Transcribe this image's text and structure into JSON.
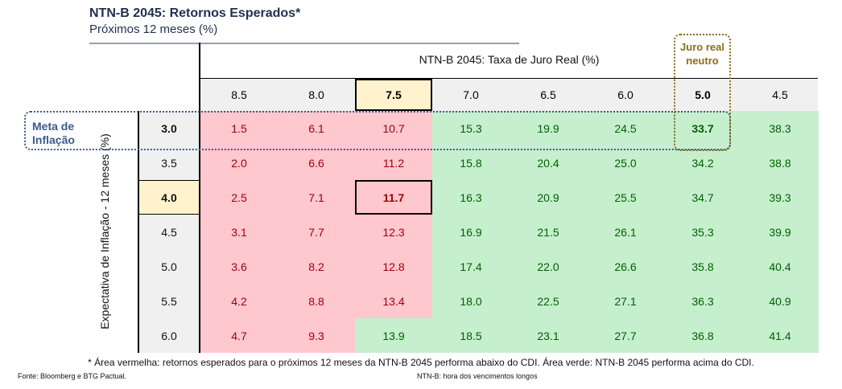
{
  "title": "NTN-B 2045: Retornos Esperados*",
  "subtitle": "Próximos 12 meses (%)",
  "chart_data": {
    "type": "table",
    "xlabel": "NTN-B 2045: Taxa de Juro Real (%)",
    "ylabel": "Expectativa de Inflação - 12 meses (%)",
    "columns": [
      "8.5",
      "8.0",
      "7.5",
      "7.0",
      "6.5",
      "6.0",
      "5.0",
      "4.5"
    ],
    "rows": [
      "3.0",
      "3.5",
      "4.0",
      "4.5",
      "5.0",
      "5.5",
      "6.0"
    ],
    "values": [
      [
        "1.5",
        "6.1",
        "10.7",
        "15.3",
        "19.9",
        "24.5",
        "33.7",
        "38.3"
      ],
      [
        "2.0",
        "6.6",
        "11.2",
        "15.8",
        "20.4",
        "25.0",
        "34.2",
        "38.8"
      ],
      [
        "2.5",
        "7.1",
        "11.7",
        "16.3",
        "20.9",
        "25.5",
        "34.7",
        "39.3"
      ],
      [
        "3.1",
        "7.7",
        "12.3",
        "16.9",
        "21.5",
        "26.1",
        "35.3",
        "39.9"
      ],
      [
        "3.6",
        "8.2",
        "12.8",
        "17.4",
        "22.0",
        "26.6",
        "35.8",
        "40.4"
      ],
      [
        "4.2",
        "8.8",
        "13.4",
        "18.0",
        "22.5",
        "27.1",
        "36.3",
        "40.9"
      ],
      [
        "4.7",
        "9.3",
        "13.9",
        "18.5",
        "23.1",
        "27.7",
        "36.8",
        "41.4"
      ]
    ],
    "below_cdi_threshold_note": "red = below CDI, green = above CDI",
    "colors": {
      "red_fill": "#ffc7ce",
      "red_text": "#9c0006",
      "green_fill": "#c6efce",
      "green_text": "#006100",
      "highlight": "#fff2cc"
    },
    "highlight_column": "7.5",
    "highlight_row": "4.0",
    "bold_columns": [
      "7.5",
      "5.0"
    ],
    "bold_rows": [
      "3.0",
      "4.0"
    ]
  },
  "annotations": {
    "meta": "Meta de Inflação",
    "juro": "Juro real neutro"
  },
  "footnote": "* Área vermelha: retornos esperados para o próximos 12 meses da NTN-B 2045 performa abaixo do CDI. Área verde: NTN-B 2045 performa acima do CDI.",
  "source": "Fonte: Bloomberg e BTG Pactual.",
  "note": "NTN-B: hora dos vencimentos longos"
}
